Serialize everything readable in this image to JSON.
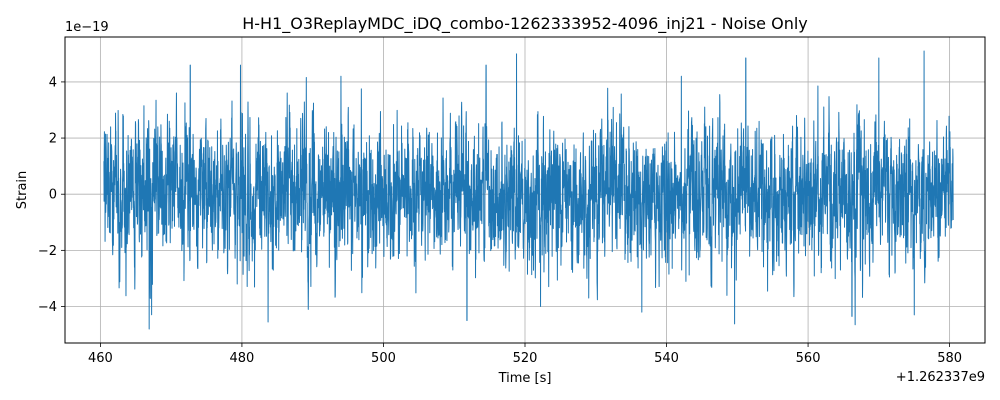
{
  "chart_data": {
    "type": "line",
    "title": "H-H1_O3ReplayMDC_iDQ_combo-1262333952-4096_inj21 - Noise Only",
    "xlabel": "Time [s]",
    "ylabel": "Strain",
    "x_offset_label": "+1.262337e9",
    "y_scale_label": "1e−19",
    "xlim": [
      455,
      585
    ],
    "ylim": [
      -5.3,
      5.6
    ],
    "x_ticks": [
      460,
      480,
      500,
      520,
      540,
      560,
      580
    ],
    "x_tick_labels": [
      "460",
      "480",
      "500",
      "520",
      "540",
      "560",
      "580"
    ],
    "y_ticks": [
      -4,
      -2,
      0,
      2,
      4
    ],
    "y_tick_labels": [
      "−4",
      "−2",
      "0",
      "2",
      "4"
    ],
    "grid": true,
    "series": [
      {
        "color": "#1f77b4",
        "x_range": [
          460.5,
          580.5
        ],
        "y_range": [
          -4.8,
          5.1
        ],
        "envelope_peaks": [
          {
            "x": 466.9,
            "y": -4.8
          },
          {
            "x": 472.7,
            "y": 4.6
          },
          {
            "x": 479.8,
            "y": 4.6
          },
          {
            "x": 483.7,
            "y": -4.55
          },
          {
            "x": 494.0,
            "y": 4.2
          },
          {
            "x": 511.8,
            "y": -4.5
          },
          {
            "x": 514.5,
            "y": 4.6
          },
          {
            "x": 518.8,
            "y": 5.0
          },
          {
            "x": 522.2,
            "y": -4.0
          },
          {
            "x": 536.5,
            "y": -4.2
          },
          {
            "x": 542.1,
            "y": 4.2
          },
          {
            "x": 551.2,
            "y": 4.85
          },
          {
            "x": 566.2,
            "y": -4.35
          },
          {
            "x": 570.0,
            "y": 4.85
          },
          {
            "x": 575.0,
            "y": -4.3
          },
          {
            "x": 576.4,
            "y": 5.1
          }
        ]
      }
    ]
  }
}
